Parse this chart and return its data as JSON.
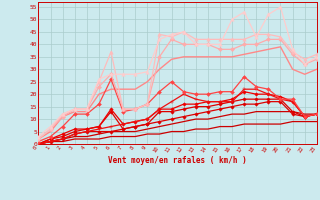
{
  "xlabel": "Vent moyen/en rafales ( km/h )",
  "xlim": [
    0,
    23
  ],
  "ylim": [
    0,
    57
  ],
  "yticks": [
    0,
    5,
    10,
    15,
    20,
    25,
    30,
    35,
    40,
    45,
    50,
    55
  ],
  "xticks": [
    0,
    1,
    2,
    3,
    4,
    5,
    6,
    7,
    8,
    9,
    10,
    11,
    12,
    13,
    14,
    15,
    16,
    17,
    18,
    19,
    20,
    21,
    22,
    23
  ],
  "bg_color": "#cceaee",
  "grid_color": "#aacccc",
  "series": [
    {
      "x": [
        0,
        1,
        2,
        3,
        4,
        5,
        6,
        7,
        8,
        9,
        10,
        11,
        12,
        13,
        14,
        15,
        16,
        17,
        18,
        19,
        20,
        21,
        22,
        23
      ],
      "y": [
        0,
        1,
        1,
        2,
        2,
        2,
        3,
        3,
        3,
        4,
        4,
        5,
        5,
        6,
        6,
        7,
        7,
        8,
        8,
        8,
        8,
        9,
        9,
        9
      ],
      "color": "#cc0000",
      "lw": 0.9,
      "marker": null
    },
    {
      "x": [
        0,
        1,
        2,
        3,
        4,
        5,
        6,
        7,
        8,
        9,
        10,
        11,
        12,
        13,
        14,
        15,
        16,
        17,
        18,
        19,
        20,
        21,
        22,
        23
      ],
      "y": [
        0,
        1,
        2,
        3,
        3,
        4,
        5,
        5,
        5,
        6,
        7,
        8,
        9,
        10,
        10,
        11,
        12,
        12,
        13,
        13,
        13,
        13,
        12,
        12
      ],
      "color": "#cc0000",
      "lw": 0.9,
      "marker": null
    },
    {
      "x": [
        0,
        1,
        2,
        3,
        4,
        5,
        6,
        7,
        8,
        9,
        10,
        11,
        12,
        13,
        14,
        15,
        16,
        17,
        18,
        19,
        20,
        21,
        22,
        23
      ],
      "y": [
        0,
        1,
        2,
        4,
        5,
        5,
        5,
        6,
        7,
        8,
        9,
        10,
        11,
        12,
        13,
        14,
        15,
        16,
        16,
        17,
        17,
        12,
        11,
        12
      ],
      "color": "#dd0000",
      "lw": 0.9,
      "marker": "D",
      "ms": 1.8
    },
    {
      "x": [
        0,
        1,
        2,
        3,
        4,
        5,
        6,
        7,
        8,
        9,
        10,
        11,
        12,
        13,
        14,
        15,
        16,
        17,
        18,
        19,
        20,
        21,
        22,
        23
      ],
      "y": [
        0,
        2,
        3,
        5,
        6,
        7,
        13,
        6,
        7,
        8,
        13,
        13,
        14,
        15,
        15,
        16,
        17,
        18,
        18,
        18,
        18,
        13,
        11,
        12
      ],
      "color": "#dd0000",
      "lw": 0.9,
      "marker": "D",
      "ms": 1.8
    },
    {
      "x": [
        0,
        1,
        2,
        3,
        4,
        5,
        6,
        7,
        8,
        9,
        10,
        11,
        12,
        13,
        14,
        15,
        16,
        17,
        18,
        19,
        20,
        21,
        22,
        23
      ],
      "y": [
        0,
        2,
        4,
        6,
        6,
        7,
        14,
        8,
        9,
        10,
        14,
        14,
        16,
        16,
        17,
        17,
        18,
        21,
        20,
        20,
        19,
        17,
        11,
        12
      ],
      "color": "#ee0000",
      "lw": 0.9,
      "marker": "D",
      "ms": 1.8
    },
    {
      "x": [
        0,
        1,
        2,
        3,
        4,
        5,
        6,
        7,
        8,
        9,
        10,
        11,
        12,
        13,
        14,
        15,
        16,
        17,
        18,
        19,
        20,
        21,
        22,
        23
      ],
      "y": [
        0,
        1,
        2,
        4,
        5,
        6,
        7,
        8,
        9,
        10,
        14,
        17,
        20,
        18,
        17,
        17,
        17,
        22,
        22,
        20,
        18,
        17,
        11,
        12
      ],
      "color": "#ee1111",
      "lw": 0.9,
      "marker": "+",
      "ms": 3.0
    },
    {
      "x": [
        0,
        1,
        2,
        3,
        4,
        5,
        6,
        7,
        8,
        9,
        10,
        11,
        12,
        13,
        14,
        15,
        16,
        17,
        18,
        19,
        20,
        21,
        22,
        23
      ],
      "y": [
        1,
        3,
        7,
        12,
        12,
        16,
        26,
        13,
        14,
        16,
        21,
        25,
        21,
        20,
        20,
        21,
        21,
        27,
        23,
        22,
        18,
        18,
        11,
        12
      ],
      "color": "#ff4444",
      "lw": 0.9,
      "marker": "D",
      "ms": 2.0
    },
    {
      "x": [
        0,
        1,
        2,
        3,
        4,
        5,
        6,
        7,
        8,
        9,
        10,
        11,
        12,
        13,
        14,
        15,
        16,
        17,
        18,
        19,
        20,
        21,
        22,
        23
      ],
      "y": [
        2,
        5,
        11,
        13,
        13,
        20,
        22,
        22,
        22,
        25,
        30,
        34,
        35,
        35,
        35,
        35,
        35,
        36,
        37,
        38,
        39,
        30,
        28,
        30
      ],
      "color": "#ff8888",
      "lw": 1.0,
      "marker": null
    },
    {
      "x": [
        0,
        1,
        2,
        3,
        4,
        5,
        6,
        7,
        8,
        9,
        10,
        11,
        12,
        13,
        14,
        15,
        16,
        17,
        18,
        19,
        20,
        21,
        22,
        23
      ],
      "y": [
        2,
        6,
        11,
        14,
        14,
        23,
        28,
        14,
        14,
        16,
        35,
        42,
        40,
        40,
        40,
        38,
        38,
        40,
        40,
        42,
        42,
        36,
        32,
        34
      ],
      "color": "#ffaaaa",
      "lw": 0.9,
      "marker": "D",
      "ms": 2.2
    },
    {
      "x": [
        0,
        1,
        2,
        3,
        4,
        5,
        6,
        7,
        8,
        9,
        10,
        11,
        12,
        13,
        14,
        15,
        16,
        17,
        18,
        19,
        20,
        21,
        22,
        23
      ],
      "y": [
        2,
        6,
        12,
        14,
        14,
        25,
        37,
        14,
        14,
        16,
        44,
        43,
        45,
        42,
        42,
        42,
        42,
        42,
        44,
        44,
        43,
        37,
        34,
        36
      ],
      "color": "#ffbbbb",
      "lw": 0.9,
      "marker": "^",
      "ms": 2.5
    },
    {
      "x": [
        0,
        1,
        2,
        3,
        4,
        5,
        6,
        7,
        8,
        9,
        10,
        11,
        12,
        13,
        14,
        15,
        16,
        17,
        18,
        19,
        20,
        21,
        22,
        23
      ],
      "y": [
        3,
        7,
        12,
        14,
        14,
        26,
        28,
        28,
        28,
        29,
        42,
        44,
        45,
        40,
        40,
        40,
        50,
        53,
        43,
        52,
        55,
        38,
        32,
        35
      ],
      "color": "#ffcccc",
      "lw": 0.9,
      "marker": "^",
      "ms": 2.5
    }
  ]
}
